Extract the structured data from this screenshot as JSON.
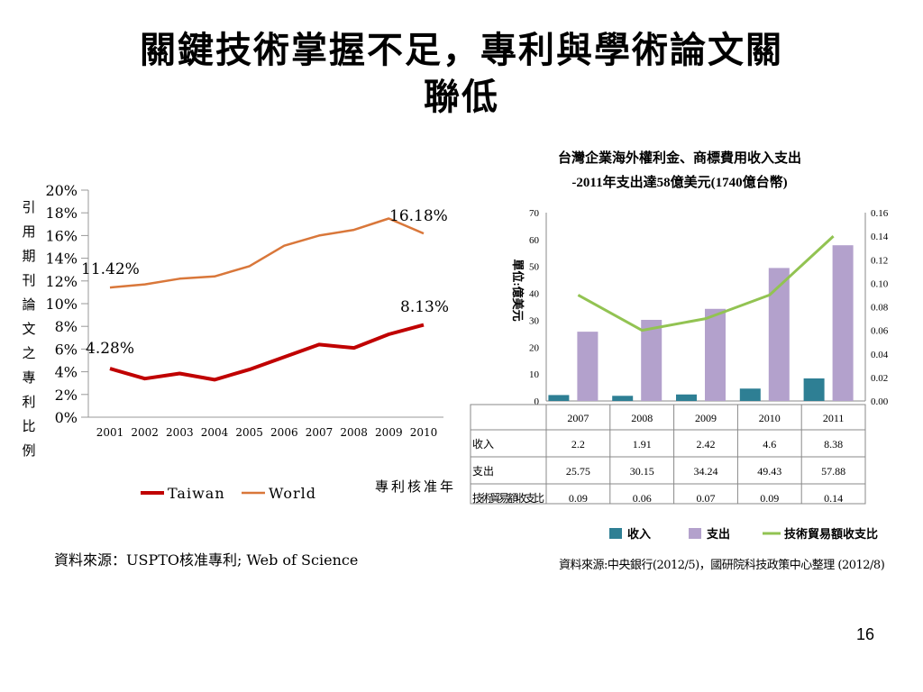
{
  "slide": {
    "title_line1": "關鍵技術掌握不足，專利與學術論文關",
    "title_line2": "聯低",
    "source_left": "資料來源：USPTO核准專利; Web of Science",
    "source_right": "資料來源:中央銀行(2012/5)，國研院科技政策中心整理 (2012/8)",
    "page_number": "16"
  },
  "chart_data": [
    {
      "type": "line",
      "xlabel": "專利核准年",
      "ylabel": "引用期刊論文之專利比例",
      "x": [
        "2001",
        "2002",
        "2003",
        "2004",
        "2005",
        "2006",
        "2007",
        "2008",
        "2009",
        "2010"
      ],
      "y_ticks": [
        "20%",
        "18%",
        "16%",
        "14%",
        "12%",
        "10%",
        "8%",
        "6%",
        "4%",
        "2%",
        "0%"
      ],
      "ylim": [
        0,
        20
      ],
      "grid": false,
      "legend": "bottom",
      "series": [
        {
          "name": "Taiwan",
          "color": "#c00000",
          "values": [
            4.28,
            3.4,
            3.85,
            3.3,
            4.2,
            5.3,
            6.4,
            6.1,
            7.3,
            8.13
          ]
        },
        {
          "name": "World",
          "color": "#d9773a",
          "values": [
            11.42,
            11.7,
            12.2,
            12.4,
            13.3,
            15.1,
            16.0,
            16.5,
            17.5,
            16.18
          ]
        }
      ],
      "annotations": [
        {
          "text": "11.42%"
        },
        {
          "text": "4.28%"
        },
        {
          "text": "16.18%"
        },
        {
          "text": "8.13%"
        }
      ]
    },
    {
      "type": "bar",
      "title": "台灣企業海外權利金、商標費用收入支出",
      "subtitle": "-2011年支出達58億美元(1740億台幣)",
      "ylabel": "單位:億美元",
      "categories": [
        "2007",
        "2008",
        "2009",
        "2010",
        "2011"
      ],
      "ylim": [
        0,
        70
      ],
      "y_ticks": [
        "70",
        "60",
        "50",
        "40",
        "30",
        "20",
        "10",
        "0"
      ],
      "y2lim": [
        0,
        0.16
      ],
      "y2_ticks": [
        "0.16",
        "0.14",
        "0.12",
        "0.10",
        "0.08",
        "0.06",
        "0.04",
        "0.02",
        "0.00"
      ],
      "legend": "bottom",
      "series": [
        {
          "name": "收入",
          "color": "#2e7f94",
          "kind": "bar",
          "values": [
            2.2,
            1.91,
            2.42,
            4.6,
            8.38
          ]
        },
        {
          "name": "支出",
          "color": "#b3a1cc",
          "kind": "bar",
          "values": [
            25.75,
            30.15,
            34.24,
            49.43,
            57.88
          ]
        },
        {
          "name": "技術貿易額收支比",
          "color": "#92c352",
          "kind": "line",
          "axis": "right",
          "values": [
            0.09,
            0.06,
            0.07,
            0.09,
            0.14
          ]
        }
      ],
      "table": {
        "row_labels": [
          "收入",
          "支出",
          "技術貿易額收支比"
        ],
        "rows": [
          [
            "2.2",
            "1.91",
            "2.42",
            "4.6",
            "8.38"
          ],
          [
            "25.75",
            "30.15",
            "34.24",
            "49.43",
            "57.88"
          ],
          [
            "0.09",
            "0.06",
            "0.07",
            "0.09",
            "0.14"
          ]
        ]
      }
    }
  ]
}
